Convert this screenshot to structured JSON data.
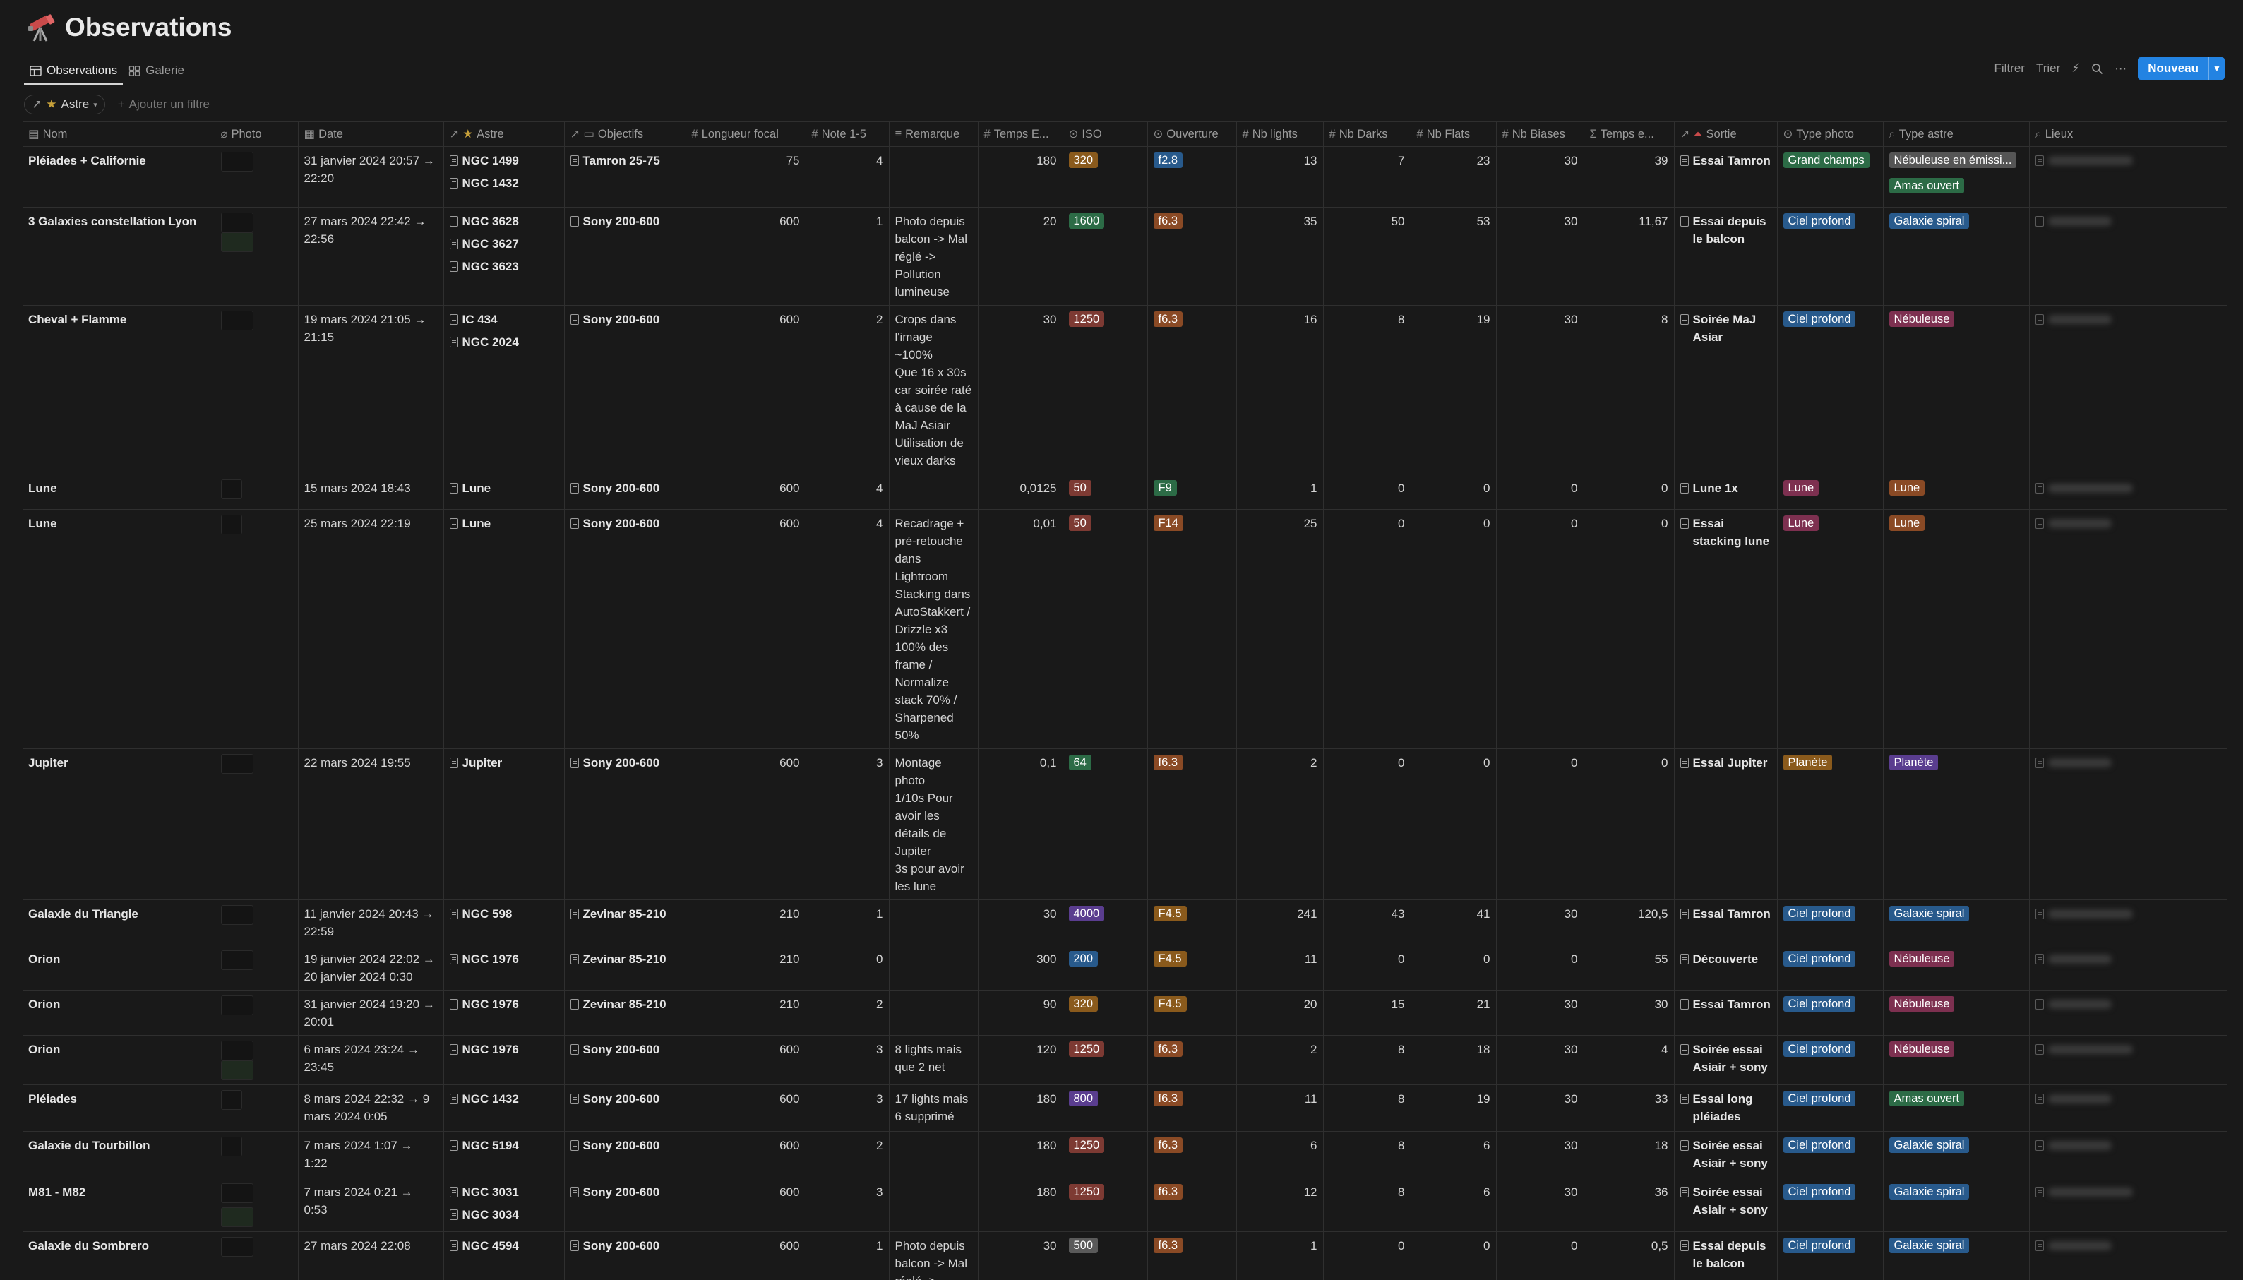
{
  "page": {
    "title": "Observations"
  },
  "tabs": [
    {
      "label": "Observations",
      "icon": "table-icon"
    },
    {
      "label": "Galerie",
      "icon": "grid-icon"
    }
  ],
  "toolbar": {
    "filter": "Filtrer",
    "sort": "Trier",
    "new_label": "Nouveau"
  },
  "filters": {
    "astre_chip": "Astre",
    "add_filter": "Ajouter un filtre"
  },
  "colors": {
    "accent": "#2383e2",
    "background": "#191919"
  },
  "columns": [
    "Nom",
    "Photo",
    "Date",
    "Astre",
    "Objectifs",
    "Longueur focal",
    "Note 1-5",
    "Remarque",
    "Temps E...",
    "ISO",
    "Ouverture",
    "Nb lights",
    "Nb Darks",
    "Nb Flats",
    "Nb Biases",
    "Temps e...",
    "Sortie",
    "Type photo",
    "Type astre",
    "Lieux"
  ],
  "rows": [
    {
      "nom": "Pléiades + Californie",
      "date": "31 janvier 2024 20:57 → 22:20",
      "astre": [
        "NGC 1499",
        "NGC 1432"
      ],
      "objectif": "Tamron 25-75",
      "focal": "75",
      "note": "4",
      "remarque": "",
      "temps_e": "180",
      "iso": "320",
      "ouverture": "f2.8",
      "lights": "13",
      "darks": "7",
      "flats": "23",
      "biases": "30",
      "temps_total": "39",
      "sortie": "Essai Tamron",
      "type_photo": "Grand champs",
      "type_astre": [
        "Nébuleuse en émissi...",
        "Amas ouvert"
      ]
    },
    {
      "nom": "3 Galaxies constellation Lyon",
      "date": "27 mars 2024 22:42 → 22:56",
      "astre": [
        "NGC 3628",
        "NGC 3627",
        "NGC 3623"
      ],
      "objectif": "Sony 200-600",
      "focal": "600",
      "note": "1",
      "remarque": "Photo depuis balcon -> Mal réglé -> Pollution lumineuse",
      "temps_e": "20",
      "iso": "1600",
      "ouverture": "f6.3",
      "lights": "35",
      "darks": "50",
      "flats": "53",
      "biases": "30",
      "temps_total": "11,67",
      "sortie": "Essai depuis le balcon",
      "type_photo": "Ciel profond",
      "type_astre": [
        "Galaxie spiral"
      ]
    },
    {
      "nom": "Cheval + Flamme",
      "date": "19 mars 2024 21:05 → 21:15",
      "astre": [
        "IC 434",
        "NGC 2024"
      ],
      "objectif": "Sony 200-600",
      "focal": "600",
      "note": "2",
      "remarque": "Crops dans l'image ~100%\nQue 16 x 30s car soirée raté à cause de la MaJ Asiair\nUtilisation de vieux darks",
      "temps_e": "30",
      "iso": "1250",
      "ouverture": "f6.3",
      "lights": "16",
      "darks": "8",
      "flats": "19",
      "biases": "30",
      "temps_total": "8",
      "sortie": "Soirée MaJ Asiar",
      "type_photo": "Ciel profond",
      "type_astre": [
        "Nébuleuse"
      ]
    },
    {
      "nom": "Lune",
      "date": "15 mars 2024 18:43",
      "astre": [
        "Lune"
      ],
      "objectif": "Sony 200-600",
      "focal": "600",
      "note": "4",
      "remarque": "",
      "temps_e": "0,0125",
      "iso": "50",
      "ouverture": "F9",
      "lights": "1",
      "darks": "0",
      "flats": "0",
      "biases": "0",
      "temps_total": "0",
      "sortie": "Lune 1x",
      "type_photo": "Lune",
      "type_astre": [
        "Lune"
      ]
    },
    {
      "nom": "Lune",
      "date": "25 mars 2024 22:19",
      "astre": [
        "Lune"
      ],
      "objectif": "Sony 200-600",
      "focal": "600",
      "note": "4",
      "remarque": "Recadrage + pré-retouche dans Lightroom\nStacking dans AutoStakkert / Drizzle x3 100% des frame / Normalize stack 70% / Sharpened 50%",
      "temps_e": "0,01",
      "iso": "50",
      "ouverture": "F14",
      "lights": "25",
      "darks": "0",
      "flats": "0",
      "biases": "0",
      "temps_total": "0",
      "sortie": "Essai stacking lune",
      "type_photo": "Lune",
      "type_astre": [
        "Lune"
      ]
    },
    {
      "nom": "Jupiter",
      "date": "22 mars 2024 19:55",
      "astre": [
        "Jupiter"
      ],
      "objectif": "Sony 200-600",
      "focal": "600",
      "note": "3",
      "remarque": "Montage photo\n1/10s Pour avoir les détails de Jupiter\n3s pour avoir les lune",
      "temps_e": "0,1",
      "iso": "64",
      "ouverture": "f6.3",
      "lights": "2",
      "darks": "0",
      "flats": "0",
      "biases": "0",
      "temps_total": "0",
      "sortie": "Essai Jupiter",
      "type_photo": "Planète",
      "type_astre": [
        "Planète"
      ]
    },
    {
      "nom": "Galaxie du Triangle",
      "date": "11 janvier 2024 20:43 → 22:59",
      "astre": [
        "NGC 598"
      ],
      "objectif": "Zevinar 85-210",
      "focal": "210",
      "note": "1",
      "remarque": "",
      "temps_e": "30",
      "iso": "4000",
      "ouverture": "F4.5",
      "lights": "241",
      "darks": "43",
      "flats": "41",
      "biases": "30",
      "temps_total": "120,5",
      "sortie": "Essai Tamron",
      "type_photo": "Ciel profond",
      "type_astre": [
        "Galaxie spiral"
      ]
    },
    {
      "nom": "Orion",
      "date": "19 janvier 2024 22:02 → 20 janvier 2024 0:30",
      "astre": [
        "NGC 1976"
      ],
      "objectif": "Zevinar 85-210",
      "focal": "210",
      "note": "0",
      "remarque": "",
      "temps_e": "300",
      "iso": "200",
      "ouverture": "F4.5",
      "lights": "11",
      "darks": "0",
      "flats": "0",
      "biases": "0",
      "temps_total": "55",
      "sortie": "Découverte",
      "type_photo": "Ciel profond",
      "type_astre": [
        "Nébuleuse"
      ]
    },
    {
      "nom": "Orion",
      "date": "31 janvier 2024 19:20 → 20:01",
      "astre": [
        "NGC 1976"
      ],
      "objectif": "Zevinar 85-210",
      "focal": "210",
      "note": "2",
      "remarque": "",
      "temps_e": "90",
      "iso": "320",
      "ouverture": "F4.5",
      "lights": "20",
      "darks": "15",
      "flats": "21",
      "biases": "30",
      "temps_total": "30",
      "sortie": "Essai Tamron",
      "type_photo": "Ciel profond",
      "type_astre": [
        "Nébuleuse"
      ]
    },
    {
      "nom": "Orion",
      "date": "6 mars 2024 23:24 → 23:45",
      "astre": [
        "NGC 1976"
      ],
      "objectif": "Sony 200-600",
      "focal": "600",
      "note": "3",
      "remarque": "8 lights mais que 2 net",
      "temps_e": "120",
      "iso": "1250",
      "ouverture": "f6.3",
      "lights": "2",
      "darks": "8",
      "flats": "18",
      "biases": "30",
      "temps_total": "4",
      "sortie": "Soirée essai Asiair + sony",
      "type_photo": "Ciel profond",
      "type_astre": [
        "Nébuleuse"
      ]
    },
    {
      "nom": "Pléiades",
      "date": "8 mars 2024 22:32 → 9 mars 2024 0:05",
      "astre": [
        "NGC 1432"
      ],
      "objectif": "Sony 200-600",
      "focal": "600",
      "note": "3",
      "remarque": "17 lights mais 6 supprimé",
      "temps_e": "180",
      "iso": "800",
      "ouverture": "f6.3",
      "lights": "11",
      "darks": "8",
      "flats": "19",
      "biases": "30",
      "temps_total": "33",
      "sortie": "Essai long pléiades",
      "type_photo": "Ciel profond",
      "type_astre": [
        "Amas ouvert"
      ]
    },
    {
      "nom": "Galaxie du Tourbillon",
      "date": "7 mars 2024 1:07 → 1:22",
      "astre": [
        "NGC 5194"
      ],
      "objectif": "Sony 200-600",
      "focal": "600",
      "note": "2",
      "remarque": "",
      "temps_e": "180",
      "iso": "1250",
      "ouverture": "f6.3",
      "lights": "6",
      "darks": "8",
      "flats": "6",
      "biases": "30",
      "temps_total": "18",
      "sortie": "Soirée essai Asiair + sony",
      "type_photo": "Ciel profond",
      "type_astre": [
        "Galaxie spiral"
      ]
    },
    {
      "nom": "M81 - M82",
      "date": "7 mars 2024 0:21 → 0:53",
      "astre": [
        "NGC 3031",
        "NGC 3034"
      ],
      "objectif": "Sony 200-600",
      "focal": "600",
      "note": "3",
      "remarque": "",
      "temps_e": "180",
      "iso": "1250",
      "ouverture": "f6.3",
      "lights": "12",
      "darks": "8",
      "flats": "6",
      "biases": "30",
      "temps_total": "36",
      "sortie": "Soirée essai Asiair + sony",
      "type_photo": "Ciel profond",
      "type_astre": [
        "Galaxie spiral"
      ]
    },
    {
      "nom": "Galaxie du Sombrero",
      "date": "27 mars 2024 22:08",
      "astre": [
        "NGC 4594"
      ],
      "objectif": "Sony 200-600",
      "focal": "600",
      "note": "1",
      "remarque": "Photo depuis balcon -> Mal réglé ->",
      "temps_e": "30",
      "iso": "500",
      "ouverture": "f6.3",
      "lights": "1",
      "darks": "0",
      "flats": "0",
      "biases": "0",
      "temps_total": "0,5",
      "sortie": "Essai depuis le balcon",
      "type_photo": "Ciel profond",
      "type_astre": [
        "Galaxie spiral"
      ]
    }
  ]
}
